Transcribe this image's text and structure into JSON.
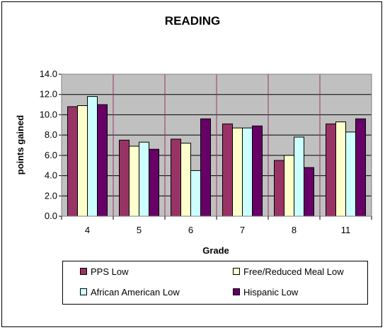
{
  "chart_data": {
    "type": "bar",
    "title": "READING",
    "xlabel": "Grade",
    "ylabel": "points gained",
    "ylim": [
      0,
      14
    ],
    "ytick_step": 2,
    "ytick_labels": [
      "0.0",
      "2.0",
      "4.0",
      "6.0",
      "8.0",
      "10.0",
      "12.0",
      "14.0"
    ],
    "categories": [
      "4",
      "5",
      "6",
      "7",
      "8",
      "11"
    ],
    "grid": true,
    "legend_position": "bottom",
    "plot_background": "#c0c0c0",
    "series": [
      {
        "name": "PPS Low",
        "color": "#993366",
        "values": [
          10.8,
          7.5,
          7.6,
          9.1,
          5.5,
          9.1
        ]
      },
      {
        "name": "Free/Reduced Meal Low",
        "color": "#ffffcc",
        "values": [
          10.9,
          6.9,
          7.2,
          8.7,
          6.0,
          9.3
        ]
      },
      {
        "name": "African American Low",
        "color": "#ccffff",
        "values": [
          11.8,
          7.3,
          4.5,
          8.7,
          7.8,
          8.3
        ]
      },
      {
        "name": "Hispanic Low",
        "color": "#660066",
        "values": [
          11.0,
          6.6,
          9.6,
          8.9,
          4.8,
          9.6
        ]
      }
    ]
  }
}
